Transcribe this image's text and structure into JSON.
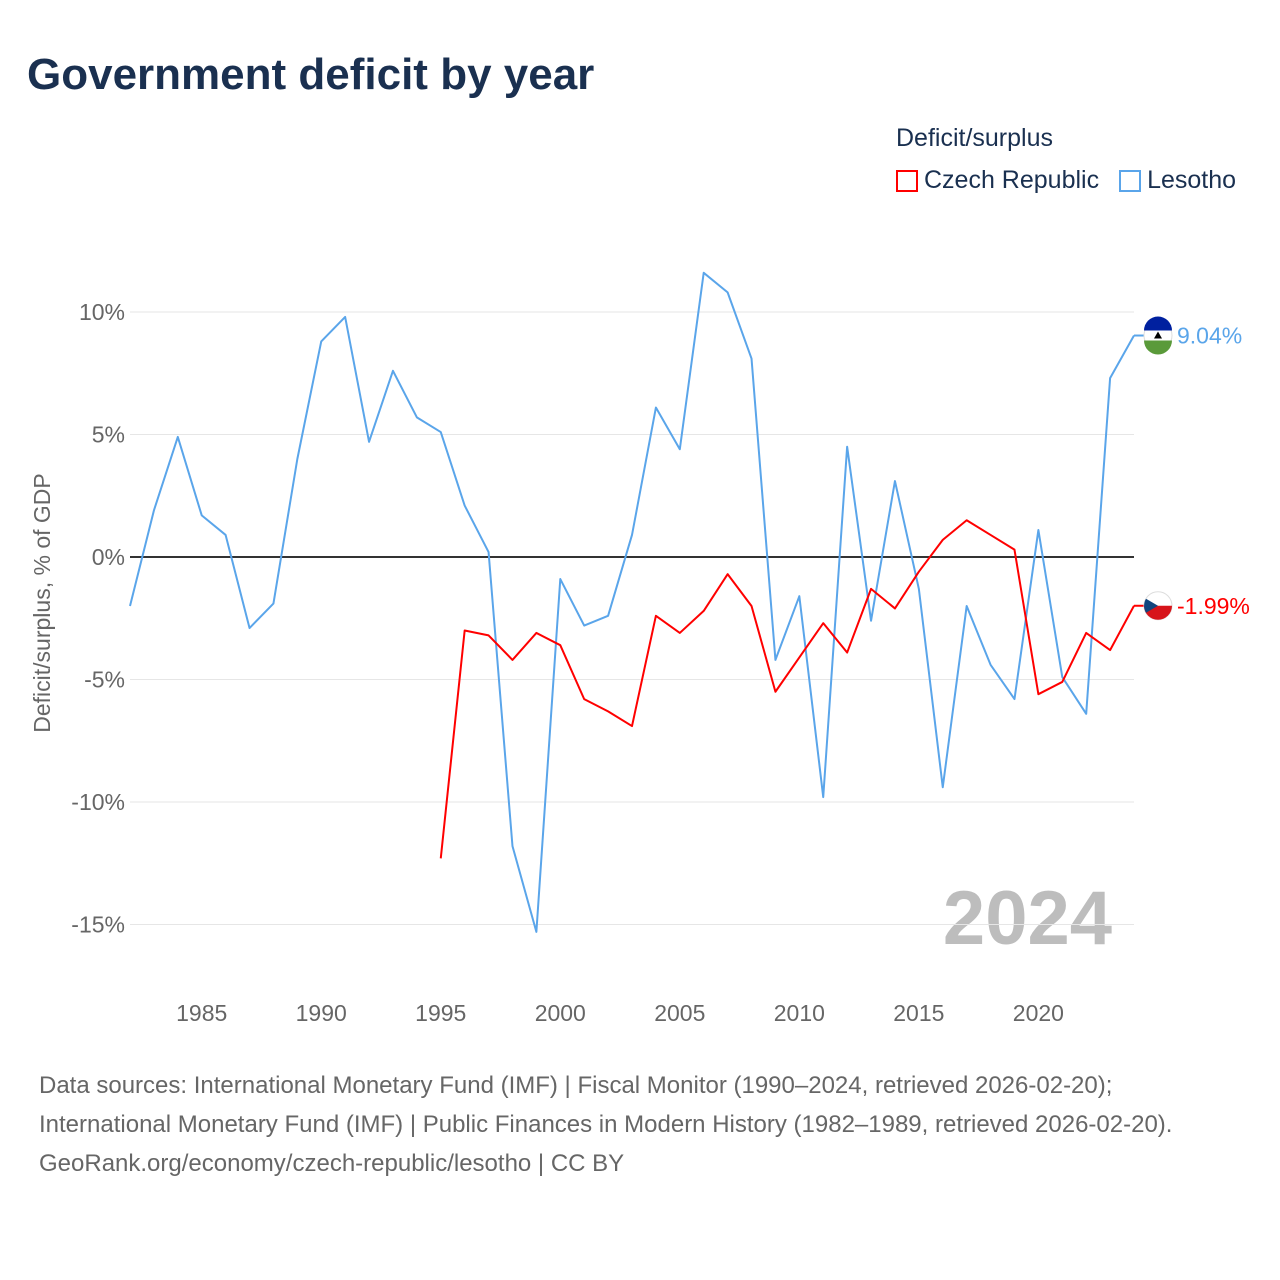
{
  "title": "Government deficit by year",
  "legend_title": "Deficit/surplus",
  "colors": {
    "czech": "#ff0000",
    "lesotho": "#5aa5ea",
    "grid": "#e6e6e6",
    "zero": "#333333",
    "year_watermark": "#bdbdbd"
  },
  "chart_data": {
    "type": "line",
    "title": "Government deficit by year",
    "xlabel": "",
    "ylabel": "Deficit/surplus, % of GDP",
    "xlim": [
      1982,
      2024
    ],
    "ylim": [
      -17,
      12.5
    ],
    "x_ticks": [
      1985,
      1990,
      1995,
      2000,
      2005,
      2010,
      2015,
      2020
    ],
    "x_tick_labels": [
      "1985",
      "1990",
      "1995",
      "2000",
      "2005",
      "2010",
      "2015",
      "2020"
    ],
    "y_ticks": [
      10,
      5,
      0,
      -5,
      -10,
      -15
    ],
    "y_tick_labels": [
      "10%",
      "5%",
      "0%",
      "-5%",
      "-10%",
      "-15%"
    ],
    "grid": true,
    "legend_position": "top-right",
    "year_label": "2024",
    "series": [
      {
        "name": "Czech Republic",
        "end_label": "-1.99%",
        "x": [
          1995,
          1996,
          1997,
          1998,
          1999,
          2000,
          2001,
          2002,
          2003,
          2004,
          2005,
          2006,
          2007,
          2008,
          2009,
          2010,
          2011,
          2012,
          2013,
          2014,
          2015,
          2016,
          2017,
          2018,
          2019,
          2020,
          2021,
          2022,
          2023,
          2024
        ],
        "values": [
          -12.3,
          -3.0,
          -3.2,
          -4.2,
          -3.1,
          -3.6,
          -5.8,
          -6.3,
          -6.9,
          -2.4,
          -3.1,
          -2.2,
          -0.7,
          -2.0,
          -5.5,
          -4.1,
          -2.7,
          -3.9,
          -1.3,
          -2.1,
          -0.6,
          0.7,
          1.5,
          0.9,
          0.3,
          -5.6,
          -5.1,
          -3.1,
          -3.8,
          -1.99
        ]
      },
      {
        "name": "Lesotho",
        "end_label": "9.04%",
        "x": [
          1982,
          1983,
          1984,
          1985,
          1986,
          1987,
          1988,
          1989,
          1990,
          1991,
          1992,
          1993,
          1994,
          1995,
          1996,
          1997,
          1998,
          1999,
          2000,
          2001,
          2002,
          2003,
          2004,
          2005,
          2006,
          2007,
          2008,
          2009,
          2010,
          2011,
          2012,
          2013,
          2014,
          2015,
          2016,
          2017,
          2018,
          2019,
          2020,
          2021,
          2022,
          2023,
          2024
        ],
        "values": [
          -2.0,
          1.9,
          4.9,
          1.7,
          0.9,
          -2.9,
          -1.9,
          4.0,
          8.8,
          9.8,
          4.7,
          7.6,
          5.7,
          5.1,
          2.1,
          0.2,
          -11.8,
          -15.3,
          -0.9,
          -2.8,
          -2.4,
          0.9,
          6.1,
          4.4,
          11.6,
          10.8,
          8.1,
          -4.2,
          -1.6,
          -9.8,
          4.5,
          -2.6,
          3.1,
          -1.3,
          -9.4,
          -2.0,
          -4.4,
          -5.8,
          1.1,
          -4.9,
          -6.4,
          7.3,
          9.04
        ]
      }
    ]
  },
  "footer": {
    "sources": "Data sources: International Monetary Fund (IMF) | Fiscal Monitor (1990–2024, retrieved 2026-02-20); International Monetary Fund (IMF) | Public Finances in Modern History (1982–1989, retrieved 2026-02-20).",
    "link": "GeoRank.org/economy/czech-republic/lesotho | CC BY"
  }
}
